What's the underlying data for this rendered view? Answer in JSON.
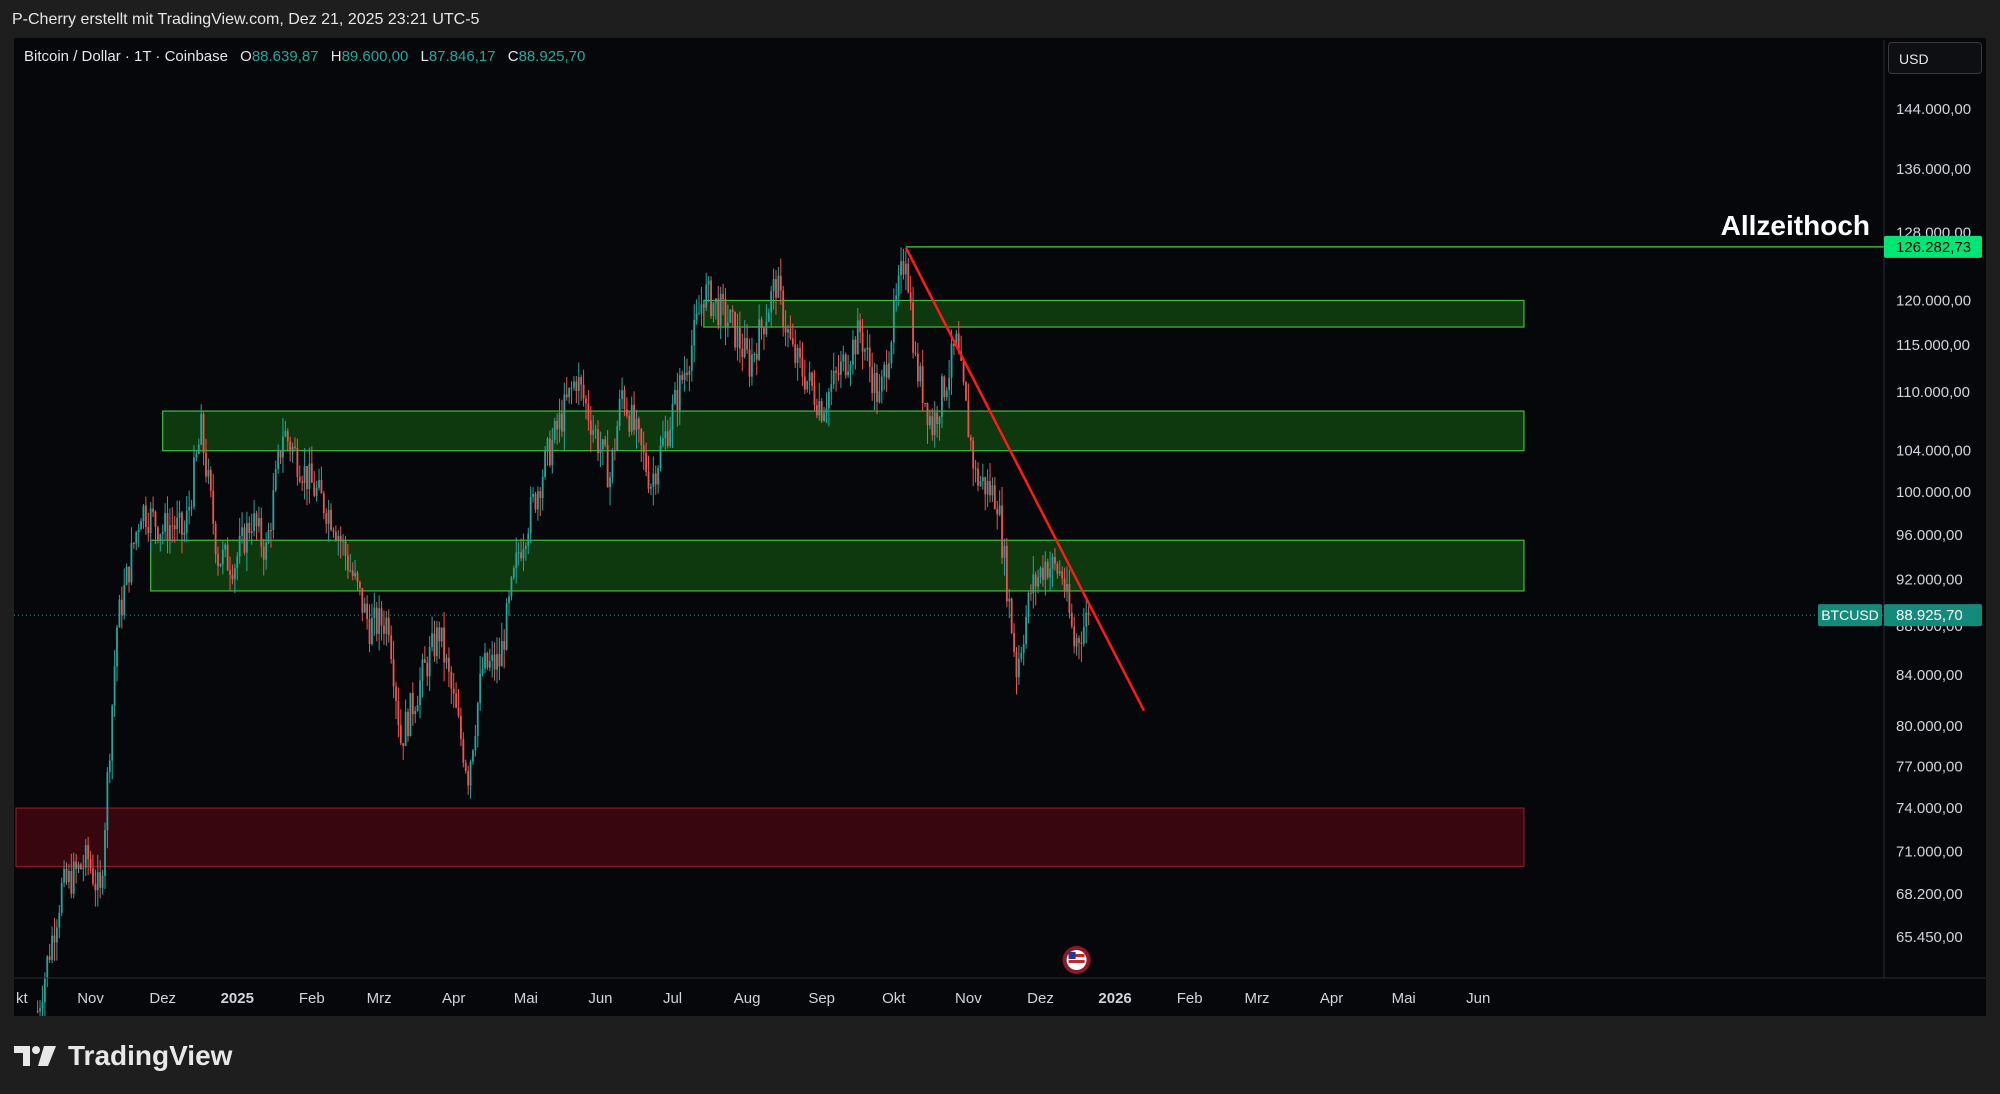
{
  "header": {
    "attribution": "P-Cherry erstellt mit TradingView.com, Dez 21, 2025 23:21 UTC-5"
  },
  "legend": {
    "symbol": "Bitcoin / Dollar · 1T · Coinbase",
    "open_label": "O",
    "open": "88.639,87",
    "high_label": "H",
    "high": "89.600,00",
    "low_label": "L",
    "low": "87.846,17",
    "close_label": "C",
    "close": "88.925,70"
  },
  "currency": "USD",
  "footer": {
    "brand": "TradingView"
  },
  "colors": {
    "up": "#26a69a",
    "down": "#ef5350",
    "zone_green": "#2e7d32",
    "zone_red": "#5c0a14",
    "trendline": "#ff1a1a",
    "ath": "#00e676"
  },
  "chart_data": {
    "type": "candlestick",
    "scale": "log",
    "y_ticks": [
      {
        "v": 144000,
        "label": "144.000,00"
      },
      {
        "v": 136000,
        "label": "136.000,00"
      },
      {
        "v": 128000,
        "label": "128.000,00"
      },
      {
        "v": 120000,
        "label": "120.000,00"
      },
      {
        "v": 115000,
        "label": "115.000,00"
      },
      {
        "v": 110000,
        "label": "110.000,00"
      },
      {
        "v": 104000,
        "label": "104.000,00"
      },
      {
        "v": 100000,
        "label": "100.000,00"
      },
      {
        "v": 96000,
        "label": "96.000,00"
      },
      {
        "v": 92000,
        "label": "92.000,00"
      },
      {
        "v": 88000,
        "label": "88.000,00"
      },
      {
        "v": 84000,
        "label": "84.000,00"
      },
      {
        "v": 80000,
        "label": "80.000,00"
      },
      {
        "v": 77000,
        "label": "77.000,00"
      },
      {
        "v": 74000,
        "label": "74.000,00"
      },
      {
        "v": 71000,
        "label": "71.000,00"
      },
      {
        "v": 68200,
        "label": "68.200,00"
      },
      {
        "v": 65450,
        "label": "65.450,00"
      }
    ],
    "x_ticks": [
      {
        "date": "2024-10-01",
        "label": "kt"
      },
      {
        "date": "2024-11-01",
        "label": "Nov"
      },
      {
        "date": "2024-12-01",
        "label": "Dez"
      },
      {
        "date": "2025-01-01",
        "label": "2025"
      },
      {
        "date": "2025-02-01",
        "label": "Feb"
      },
      {
        "date": "2025-03-01",
        "label": "Mrz"
      },
      {
        "date": "2025-04-01",
        "label": "Apr"
      },
      {
        "date": "2025-05-01",
        "label": "Mai"
      },
      {
        "date": "2025-06-01",
        "label": "Jun"
      },
      {
        "date": "2025-07-01",
        "label": "Jul"
      },
      {
        "date": "2025-08-01",
        "label": "Aug"
      },
      {
        "date": "2025-09-01",
        "label": "Sep"
      },
      {
        "date": "2025-10-01",
        "label": "Okt"
      },
      {
        "date": "2025-11-01",
        "label": "Nov"
      },
      {
        "date": "2025-12-01",
        "label": "Dez"
      },
      {
        "date": "2026-01-01",
        "label": "2026"
      },
      {
        "date": "2026-02-01",
        "label": "Feb"
      },
      {
        "date": "2026-03-01",
        "label": "Mrz"
      },
      {
        "date": "2026-04-01",
        "label": "Apr"
      },
      {
        "date": "2026-05-01",
        "label": "Mai"
      },
      {
        "date": "2026-06-01",
        "label": "Jun"
      }
    ],
    "price_path": [
      [
        "2024-10-10",
        61000
      ],
      [
        "2024-10-20",
        68500
      ],
      [
        "2024-10-31",
        70500
      ],
      [
        "2024-11-05",
        68000
      ],
      [
        "2024-11-12",
        88000
      ],
      [
        "2024-11-22",
        98500
      ],
      [
        "2024-12-01",
        96500
      ],
      [
        "2024-12-05",
        97000
      ],
      [
        "2024-12-10",
        96000
      ],
      [
        "2024-12-17",
        106000
      ],
      [
        "2024-12-24",
        94000
      ],
      [
        "2024-12-31",
        93500
      ],
      [
        "2025-01-07",
        97500
      ],
      [
        "2025-01-13",
        94500
      ],
      [
        "2025-01-20",
        106000
      ],
      [
        "2025-01-31",
        101000
      ],
      [
        "2025-02-10",
        97500
      ],
      [
        "2025-02-25",
        88000
      ],
      [
        "2025-03-05",
        88500
      ],
      [
        "2025-03-10",
        79000
      ],
      [
        "2025-03-20",
        84500
      ],
      [
        "2025-03-26",
        87500
      ],
      [
        "2025-04-07",
        76500
      ],
      [
        "2025-04-13",
        84500
      ],
      [
        "2025-04-20",
        85000
      ],
      [
        "2025-04-28",
        94500
      ],
      [
        "2025-05-10",
        103500
      ],
      [
        "2025-05-22",
        111500
      ],
      [
        "2025-06-05",
        101500
      ],
      [
        "2025-06-10",
        110000
      ],
      [
        "2025-06-22",
        101000
      ],
      [
        "2025-06-30",
        107000
      ],
      [
        "2025-07-10",
        116000
      ],
      [
        "2025-07-14",
        121000
      ],
      [
        "2025-07-25",
        117500
      ],
      [
        "2025-08-02",
        113000
      ],
      [
        "2025-08-13",
        122000
      ],
      [
        "2025-08-20",
        114000
      ],
      [
        "2025-09-01",
        108500
      ],
      [
        "2025-09-17",
        116500
      ],
      [
        "2025-09-25",
        109000
      ],
      [
        "2025-10-06",
        126000
      ],
      [
        "2025-10-10",
        113000
      ],
      [
        "2025-10-17",
        106500
      ],
      [
        "2025-10-27",
        115000
      ],
      [
        "2025-11-04",
        101500
      ],
      [
        "2025-11-13",
        99500
      ],
      [
        "2025-11-21",
        84500
      ],
      [
        "2025-11-27",
        91000
      ],
      [
        "2025-12-03",
        93500
      ],
      [
        "2025-12-10",
        92500
      ],
      [
        "2025-12-15",
        86500
      ],
      [
        "2025-12-21",
        88925
      ]
    ],
    "zones": [
      {
        "kind": "support",
        "from": "2025-07-14",
        "to": "2026-06-20",
        "low": 117000,
        "high": 120000
      },
      {
        "kind": "support",
        "from": "2024-12-01",
        "to": "2026-06-20",
        "low": 104000,
        "high": 108000
      },
      {
        "kind": "support",
        "from": "2024-11-26",
        "to": "2026-06-20",
        "low": 91000,
        "high": 95500
      },
      {
        "kind": "resistance",
        "from": "2024-10-01",
        "to": "2026-06-20",
        "low": 70000,
        "high": 74000
      }
    ],
    "trendline": {
      "from": {
        "date": "2025-10-06",
        "price": 126200
      },
      "to": {
        "date": "2026-01-13",
        "price": 81200
      }
    },
    "ath": {
      "date": "2025-10-06",
      "price": 126282.73,
      "label": "126.282,73",
      "annotation": "Allzeithoch"
    },
    "last": {
      "price": 88925.7,
      "label": "88.925,70",
      "symbol": "BTCUSD"
    }
  }
}
